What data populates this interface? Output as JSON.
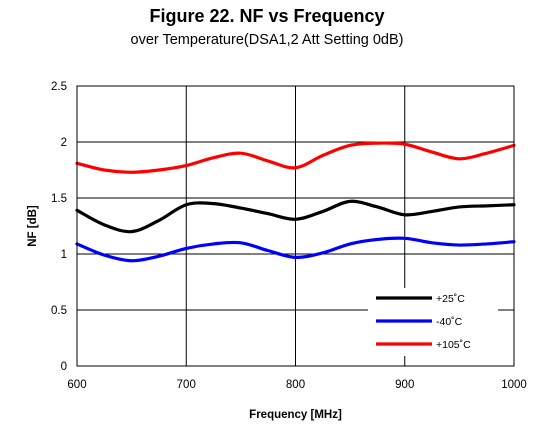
{
  "chart_data": {
    "type": "line",
    "title": "Figure 22. NF vs Frequency",
    "subtitle": "over Temperature(DSA1,2 Att Setting 0dB)",
    "xlabel": "Frequency [MHz]",
    "ylabel": "NF [dB]",
    "xlim": [
      600,
      1000
    ],
    "ylim": [
      0,
      2.5
    ],
    "xticks": [
      600,
      700,
      800,
      900,
      1000
    ],
    "yticks": [
      0,
      0.5,
      1,
      1.5,
      2,
      2.5
    ],
    "xtick_labels": [
      "600",
      "700",
      "800",
      "900",
      "1000"
    ],
    "ytick_labels": [
      "0",
      "0.5",
      "1",
      "1.5",
      "2",
      "2.5"
    ],
    "grid": true,
    "legend_position": "bottom-right",
    "series": [
      {
        "name": "+25˚C",
        "color": "#000000",
        "x": [
          600,
          625,
          650,
          675,
          700,
          725,
          750,
          775,
          800,
          825,
          850,
          875,
          900,
          925,
          950,
          975,
          1000
        ],
        "y": [
          1.39,
          1.26,
          1.2,
          1.3,
          1.44,
          1.45,
          1.41,
          1.36,
          1.31,
          1.38,
          1.47,
          1.42,
          1.35,
          1.38,
          1.42,
          1.43,
          1.44
        ]
      },
      {
        "name": "-40˚C",
        "color": "#0000ff",
        "x": [
          600,
          625,
          650,
          675,
          700,
          725,
          750,
          775,
          800,
          825,
          850,
          875,
          900,
          925,
          950,
          975,
          1000
        ],
        "y": [
          1.09,
          0.99,
          0.94,
          0.98,
          1.05,
          1.09,
          1.1,
          1.03,
          0.97,
          1.01,
          1.09,
          1.13,
          1.14,
          1.1,
          1.08,
          1.09,
          1.11
        ]
      },
      {
        "name": "+105˚C",
        "color": "#ff0000",
        "x": [
          600,
          625,
          650,
          675,
          700,
          725,
          750,
          775,
          800,
          825,
          850,
          875,
          900,
          925,
          950,
          975,
          1000
        ],
        "y": [
          1.81,
          1.75,
          1.73,
          1.75,
          1.79,
          1.86,
          1.9,
          1.83,
          1.77,
          1.88,
          1.97,
          1.99,
          1.98,
          1.91,
          1.85,
          1.9,
          1.97
        ]
      }
    ]
  }
}
